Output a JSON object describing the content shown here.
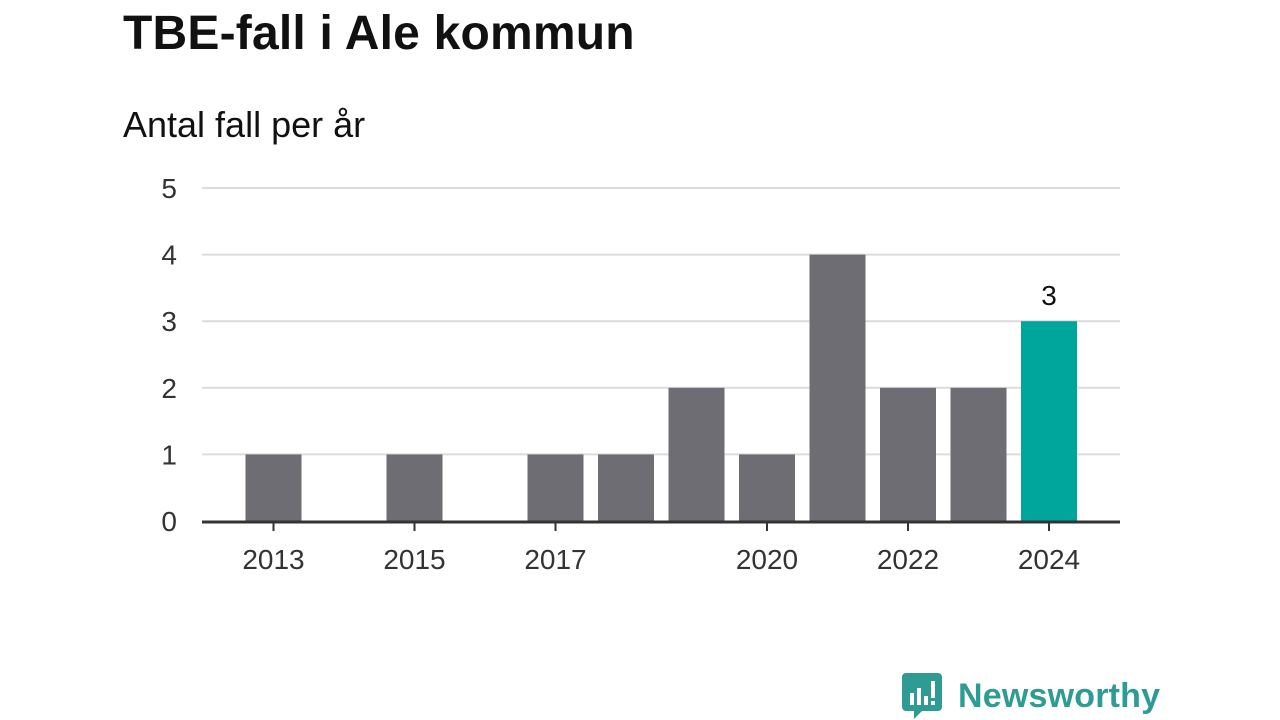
{
  "title": "TBE-fall i Ale kommun",
  "subtitle": "Antal fall per år",
  "brand": {
    "name": "Newsworthy",
    "icon": "newsworthy-logo-icon",
    "color": "#2e9c93"
  },
  "colors": {
    "bar": "#6e6d74",
    "highlight": "#00a69c",
    "grid": "#dcdcdc",
    "axis": "#333333",
    "text": "#333333"
  },
  "chart_data": {
    "type": "bar",
    "title": "TBE-fall i Ale kommun",
    "subtitle": "Antal fall per år",
    "xlabel": "",
    "ylabel": "",
    "categories": [
      2013,
      2014,
      2015,
      2016,
      2017,
      2018,
      2019,
      2020,
      2021,
      2022,
      2023,
      2024
    ],
    "values": [
      1,
      0,
      1,
      0,
      1,
      1,
      2,
      1,
      4,
      2,
      2,
      3
    ],
    "x_tick_labels": [
      "2013",
      "2015",
      "2017",
      "2020",
      "2022",
      "2024"
    ],
    "y_ticks": [
      0,
      1,
      2,
      3,
      4,
      5
    ],
    "ylim": [
      0,
      5
    ],
    "grid": true,
    "highlight": {
      "category": 2024,
      "label": "3"
    }
  }
}
